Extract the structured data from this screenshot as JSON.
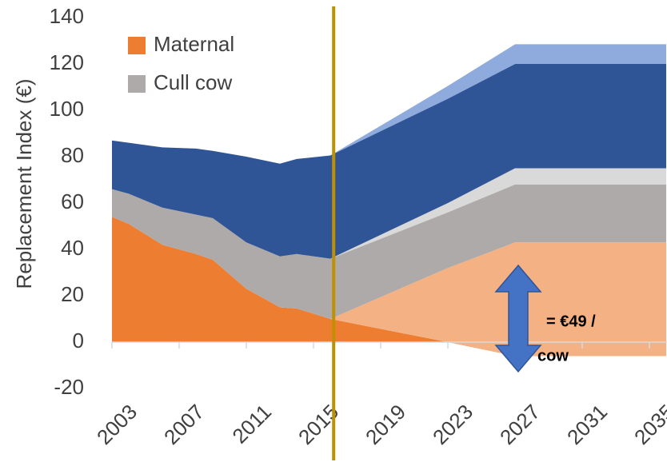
{
  "chart_data": {
    "type": "stacked-area",
    "y_label": "Replacement Index (€)",
    "x": [
      2003,
      2004,
      2006,
      2008,
      2009,
      2011,
      2013,
      2014,
      2016,
      2023,
      2027,
      2036
    ],
    "series": [
      {
        "name": "Maternal",
        "color": "#ed7d31",
        "values": [
          54,
          51,
          42,
          38,
          35.5,
          23,
          15,
          14.5,
          10,
          0,
          -6,
          -6
        ]
      },
      {
        "color": "#f4b183",
        "values": [
          0,
          0,
          0,
          0,
          0,
          0,
          0,
          0,
          0,
          32,
          49,
          49
        ]
      },
      {
        "name": "Cull cow",
        "color": "#aeaaaa",
        "values": [
          12,
          13,
          16,
          17,
          18,
          20,
          22,
          23.5,
          26,
          24,
          25,
          25
        ]
      },
      {
        "color": "#d9d9d9",
        "values": [
          0,
          0,
          0,
          0,
          0,
          0,
          0,
          0,
          0,
          4,
          7,
          7
        ]
      },
      {
        "color": "#2f5597",
        "values": [
          21,
          22,
          26,
          28.5,
          29,
          37,
          40,
          41,
          44.5,
          45,
          45,
          45
        ]
      },
      {
        "color": "#8faadc",
        "values": [
          0,
          0,
          0,
          0,
          0,
          0,
          0,
          0,
          0,
          5.5,
          8.5,
          8.5
        ]
      }
    ],
    "xlim": [
      2003,
      2036
    ],
    "xticks": [
      2003,
      2007,
      2011,
      2015,
      2019,
      2023,
      2027,
      2031,
      2035
    ],
    "ylim": [
      -20,
      140
    ],
    "yticks": [
      -20,
      0,
      20,
      40,
      60,
      80,
      100,
      120,
      140
    ],
    "vline": 2016.2,
    "vline_color": "#bf9000",
    "annotation": [
      "= €49 /",
      "cow"
    ],
    "legend": "upper left"
  }
}
